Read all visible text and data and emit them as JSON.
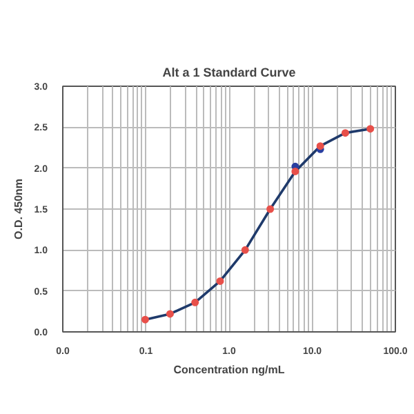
{
  "chart_data": {
    "type": "scatter",
    "title": "Alt a 1 Standard Curve",
    "xlabel": "Concentration ng/mL",
    "ylabel": "O.D. 450nm",
    "log": "x",
    "x": [
      0.098,
      0.195,
      0.39,
      0.78,
      1.56,
      3.125,
      6.25,
      12.5,
      25,
      50
    ],
    "series": [
      {
        "type": "line",
        "marker": "none",
        "color": "#1f3a6b",
        "values": [
          0.15,
          0.22,
          0.36,
          0.62,
          1.0,
          1.5,
          1.96,
          2.27,
          2.43,
          2.48
        ]
      },
      {
        "color": "#2a3fa0",
        "values": [
          null,
          null,
          null,
          null,
          null,
          null,
          2.02,
          2.23,
          null,
          null
        ]
      },
      {
        "color": "#e8504a",
        "values": [
          0.15,
          0.22,
          0.36,
          0.62,
          1.0,
          1.5,
          1.96,
          2.27,
          2.43,
          2.48
        ]
      }
    ],
    "marker": "circle",
    "grid": true,
    "xlim": [
      0.01,
      100
    ],
    "ylim": [
      0,
      3
    ],
    "xticks": [
      {
        "value": 0.01,
        "label": "0.0"
      },
      {
        "value": 0.02,
        "label": null
      },
      {
        "value": 0.03,
        "label": null
      },
      {
        "value": 0.04,
        "label": null
      },
      {
        "value": 0.05,
        "label": null
      },
      {
        "value": 0.06,
        "label": null
      },
      {
        "value": 0.07,
        "label": null
      },
      {
        "value": 0.08,
        "label": null
      },
      {
        "value": 0.09,
        "label": null
      },
      {
        "value": 0.1,
        "label": "0.1"
      },
      {
        "value": 0.2,
        "label": null
      },
      {
        "value": 0.3,
        "label": null
      },
      {
        "value": 0.4,
        "label": null
      },
      {
        "value": 0.5,
        "label": null
      },
      {
        "value": 0.6,
        "label": null
      },
      {
        "value": 0.7,
        "label": null
      },
      {
        "value": 0.8,
        "label": null
      },
      {
        "value": 0.9,
        "label": null
      },
      {
        "value": 1,
        "label": "1.0"
      },
      {
        "value": 2,
        "label": null
      },
      {
        "value": 3,
        "label": null
      },
      {
        "value": 4,
        "label": null
      },
      {
        "value": 5,
        "label": null
      },
      {
        "value": 6,
        "label": null
      },
      {
        "value": 7,
        "label": null
      },
      {
        "value": 8,
        "label": null
      },
      {
        "value": 9,
        "label": null
      },
      {
        "value": 10,
        "label": "10.0"
      },
      {
        "value": 20,
        "label": null
      },
      {
        "value": 30,
        "label": null
      },
      {
        "value": 40,
        "label": null
      },
      {
        "value": 50,
        "label": null
      },
      {
        "value": 60,
        "label": null
      },
      {
        "value": 70,
        "label": null
      },
      {
        "value": 80,
        "label": null
      },
      {
        "value": 90,
        "label": null
      },
      {
        "value": 100,
        "label": "100.0"
      }
    ],
    "yticks": [
      {
        "value": 0,
        "label": "0.0"
      },
      {
        "value": 0.5,
        "label": "0.5"
      },
      {
        "value": 1,
        "label": "1.0"
      },
      {
        "value": 1.5,
        "label": "1.5"
      },
      {
        "value": 2,
        "label": "2.0"
      },
      {
        "value": 2.5,
        "label": "2.5"
      },
      {
        "value": 3,
        "label": "3.0"
      }
    ]
  }
}
